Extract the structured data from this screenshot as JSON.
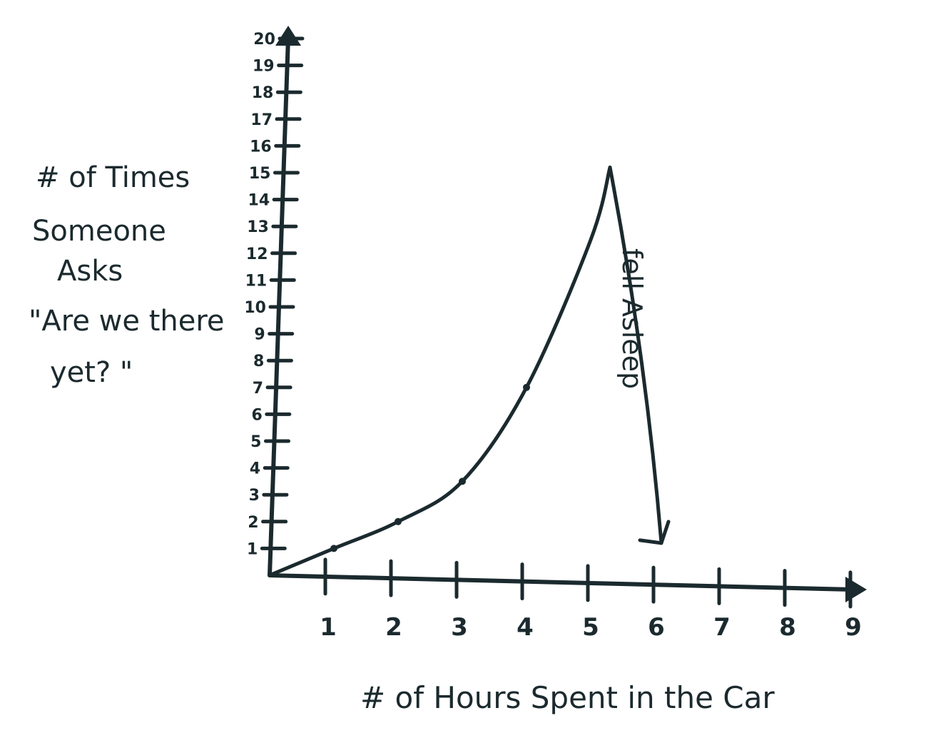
{
  "chart_data": {
    "type": "line",
    "ylabel_lines": [
      "# of Times",
      "Someone",
      "Asks",
      "\"Are we there",
      "yet? \""
    ],
    "xlabel": "# of Hours Spent in the Car",
    "x_ticks": [
      "1",
      "2",
      "3",
      "4",
      "5",
      "6",
      "7",
      "8",
      "9"
    ],
    "y_ticks": [
      "1",
      "2",
      "3",
      "4",
      "5",
      "6",
      "7",
      "8",
      "9",
      "10",
      "11",
      "12",
      "13",
      "14",
      "15",
      "16",
      "17",
      "18",
      "19",
      "20"
    ],
    "xlim": [
      0,
      9.8
    ],
    "ylim": [
      0,
      21
    ],
    "series": [
      {
        "x": [
          0,
          1,
          2,
          3,
          4,
          5,
          5.3
        ],
        "y": [
          0,
          1,
          2,
          3.5,
          7,
          12.5,
          15.2
        ],
        "markers_x": [
          1,
          2,
          3,
          4
        ],
        "markers_y": [
          1,
          2,
          3.5,
          7
        ]
      }
    ],
    "drop": {
      "x": [
        5.3,
        6.1
      ],
      "y": [
        15.2,
        1.2
      ]
    },
    "annotation": "fell Asleep",
    "grid": false,
    "color": "#1b2a2e"
  }
}
